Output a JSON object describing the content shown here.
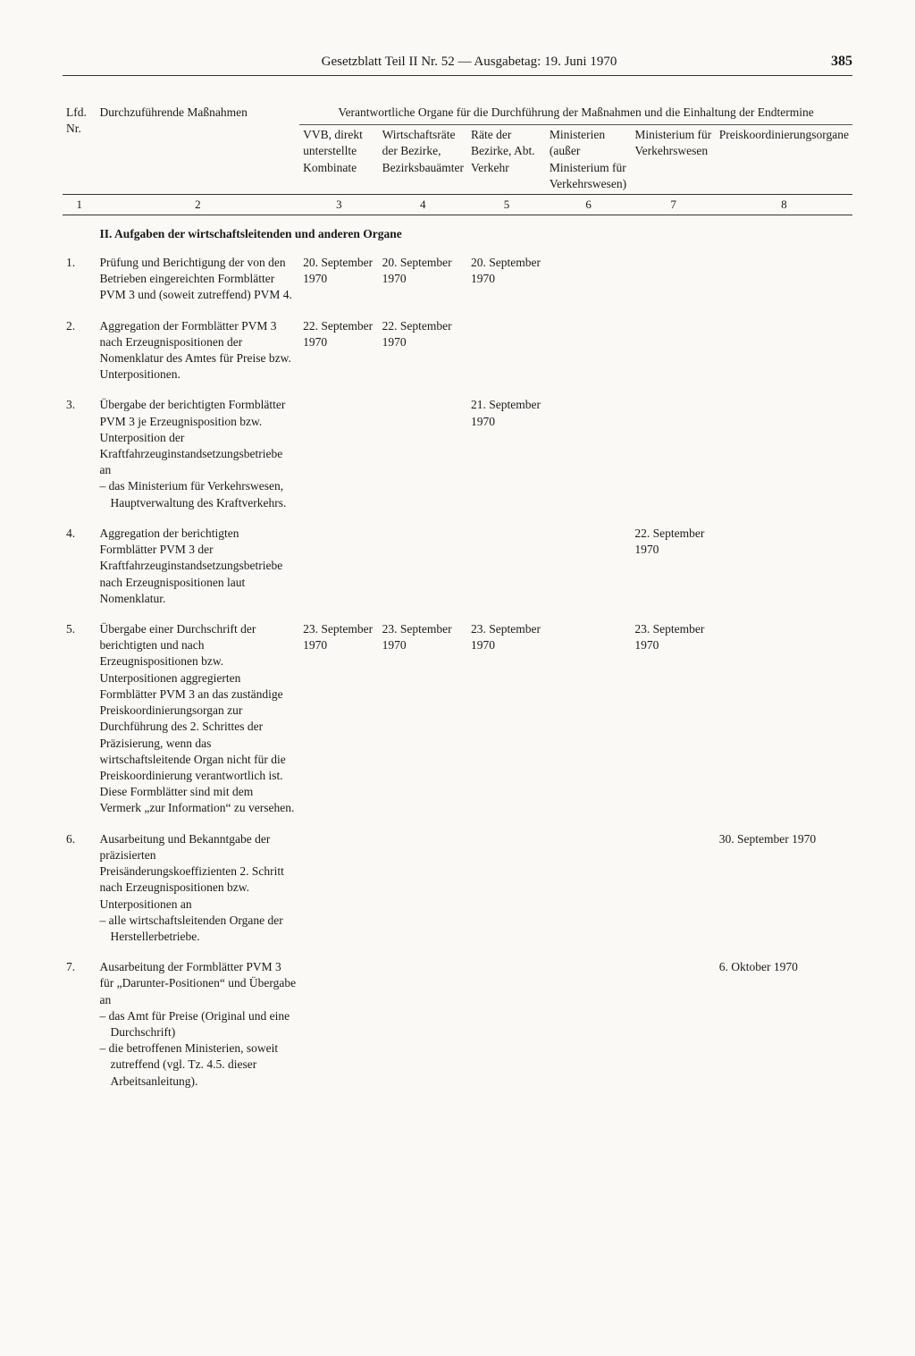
{
  "header": {
    "title": "Gesetzblatt Teil II Nr. 52 — Ausgabetag: 19. Juni 1970",
    "page_number": "385"
  },
  "table": {
    "group_header": "Verantwortliche Organe für die Durchführung der Maßnahmen und die Einhaltung der Endtermine",
    "columns": {
      "c1": "Lfd. Nr.",
      "c2": "Durchzuführende Maßnahmen",
      "c3": "VVB, direkt unterstellte Kombinate",
      "c4": "Wirtschaftsräte der Bezirke, Bezirksbauämter",
      "c5": "Räte der Bezirke, Abt. Verkehr",
      "c6": "Ministerien (außer Ministerium für Verkehrswesen)",
      "c7": "Ministerium für Verkehrswesen",
      "c8": "Preiskoordinierungsorgane"
    },
    "colnums": {
      "n1": "1",
      "n2": "2",
      "n3": "3",
      "n4": "4",
      "n5": "5",
      "n6": "6",
      "n7": "7",
      "n8": "8"
    },
    "section": "II. Aufgaben der wirtschaftsleitenden und anderen Organe",
    "rows": [
      {
        "nr": "1.",
        "text": "Prüfung und Berichtigung der von den Betrieben eingereichten Formblätter PVM 3 und (soweit zutreffend) PVM 4.",
        "sub": [],
        "c3": "20. September 1970",
        "c4": "20. September 1970",
        "c5": "20. September 1970",
        "c6": "",
        "c7": "",
        "c8": ""
      },
      {
        "nr": "2.",
        "text": "Aggregation der Formblätter PVM 3 nach Erzeugnispositionen der Nomenklatur des Amtes für Preise bzw. Unterpositionen.",
        "sub": [],
        "c3": "22. September 1970",
        "c4": "22. September 1970",
        "c5": "",
        "c6": "",
        "c7": "",
        "c8": ""
      },
      {
        "nr": "3.",
        "text": "Übergabe der berichtigten Formblätter PVM 3 je Erzeugnisposition bzw. Unterposition der Kraftfahrzeuginstandsetzungsbetriebe an",
        "sub": [
          "das Ministerium für Verkehrswesen, Hauptverwaltung des Kraftverkehrs."
        ],
        "c3": "",
        "c4": "",
        "c5": "21. September 1970",
        "c6": "",
        "c7": "",
        "c8": ""
      },
      {
        "nr": "4.",
        "text": "Aggregation der berichtigten Formblätter PVM 3 der Kraftfahrzeuginstandsetzungsbetriebe nach Erzeugnispositionen laut Nomenklatur.",
        "sub": [],
        "c3": "",
        "c4": "",
        "c5": "",
        "c6": "",
        "c7": "22. September 1970",
        "c8": ""
      },
      {
        "nr": "5.",
        "text": "Übergabe einer Durchschrift der berichtigten und nach Erzeugnispositionen bzw. Unterpositionen aggregierten Formblätter PVM 3 an das zuständige Preiskoordinierungsorgan zur Durchführung des 2. Schrittes der Präzisierung, wenn das wirtschaftsleitende Organ nicht für die Preiskoordinierung verantwortlich ist. Diese Formblätter sind mit dem Vermerk „zur Information“ zu versehen.",
        "sub": [],
        "c3": "23. September 1970",
        "c4": "23. September 1970",
        "c5": "23. September 1970",
        "c6": "",
        "c7": "23. September 1970",
        "c8": ""
      },
      {
        "nr": "6.",
        "text": "Ausarbeitung und Bekanntgabe der präzisierten Preisänderungskoeffizienten 2. Schritt nach Erzeugnispositionen bzw. Unterpositionen an",
        "sub": [
          "alle wirtschaftsleitenden Organe der Herstellerbetriebe."
        ],
        "c3": "",
        "c4": "",
        "c5": "",
        "c6": "",
        "c7": "",
        "c8": "30. September 1970"
      },
      {
        "nr": "7.",
        "text": "Ausarbeitung der Formblätter PVM 3 für „Darunter-Positionen“ und Übergabe an",
        "sub": [
          "das Amt für Preise (Original und eine Durchschrift)",
          "die betroffenen Ministerien, soweit zutreffend (vgl. Tz. 4.5. dieser Arbeitsanleitung)."
        ],
        "c3": "",
        "c4": "",
        "c5": "",
        "c6": "",
        "c7": "",
        "c8": "6. Oktober 1970"
      }
    ]
  }
}
